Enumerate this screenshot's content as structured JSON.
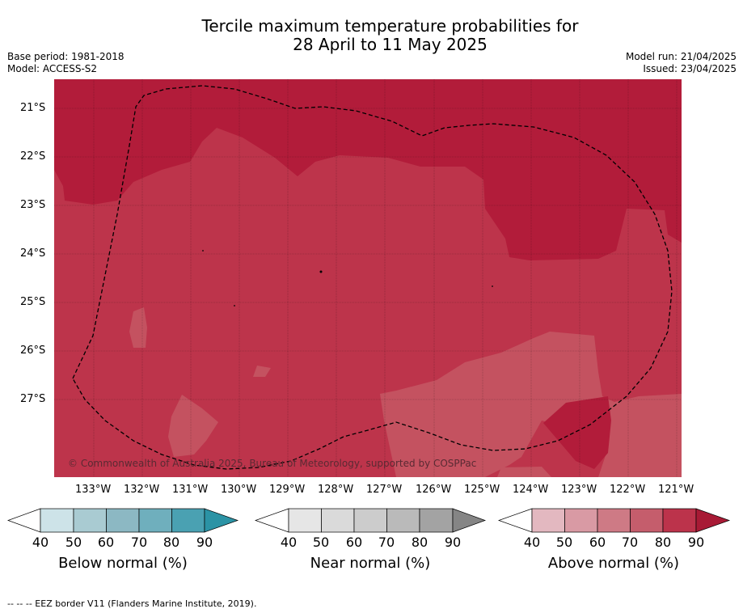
{
  "title": {
    "line1": "Tercile maximum temperature probabilities for",
    "line2": "28 April to 11 May 2025"
  },
  "meta": {
    "base_period": "Base period: 1981-2018",
    "model": "Model: ACCESS-S2",
    "model_run": "Model run: 21/04/2025",
    "issued": "Issued: 23/04/2025"
  },
  "map": {
    "lat_labels": [
      "21°S",
      "22°S",
      "23°S",
      "24°S",
      "25°S",
      "26°S",
      "27°S"
    ],
    "lon_labels": [
      "133°W",
      "132°W",
      "131°W",
      "130°W",
      "129°W",
      "128°W",
      "127°W",
      "126°W",
      "125°W",
      "124°W",
      "123°W",
      "122°W",
      "121°W"
    ],
    "copyright": "© Commonwealth of Australia 2025, Bureau of Meteorology, supported by COSPPac",
    "colors": {
      "dark": "#b21c3a",
      "mid": "#bd344b",
      "light": "#c45260"
    }
  },
  "colorbars": [
    {
      "label": "Below normal (%)",
      "ticks": [
        "40",
        "50",
        "60",
        "70",
        "80",
        "90"
      ],
      "colors": [
        "#cde3e8",
        "#a9cbd2",
        "#8cb8c3",
        "#6fafbd",
        "#4aa1b2",
        "#2b93a5"
      ]
    },
    {
      "label": "Near normal (%)",
      "ticks": [
        "40",
        "50",
        "60",
        "70",
        "80",
        "90"
      ],
      "colors": [
        "#e6e6e6",
        "#dadada",
        "#cccccc",
        "#bababa",
        "#a3a3a3",
        "#858585"
      ]
    },
    {
      "label": "Above normal (%)",
      "ticks": [
        "40",
        "50",
        "60",
        "70",
        "80",
        "90"
      ],
      "colors": [
        "#e3b8c0",
        "#d99aa4",
        "#ce7a85",
        "#c55d6c",
        "#bc334b",
        "#a81a35"
      ]
    }
  ],
  "footer": "--  --  -- EEZ border V11 (Flanders Marine Institute, 2019)."
}
